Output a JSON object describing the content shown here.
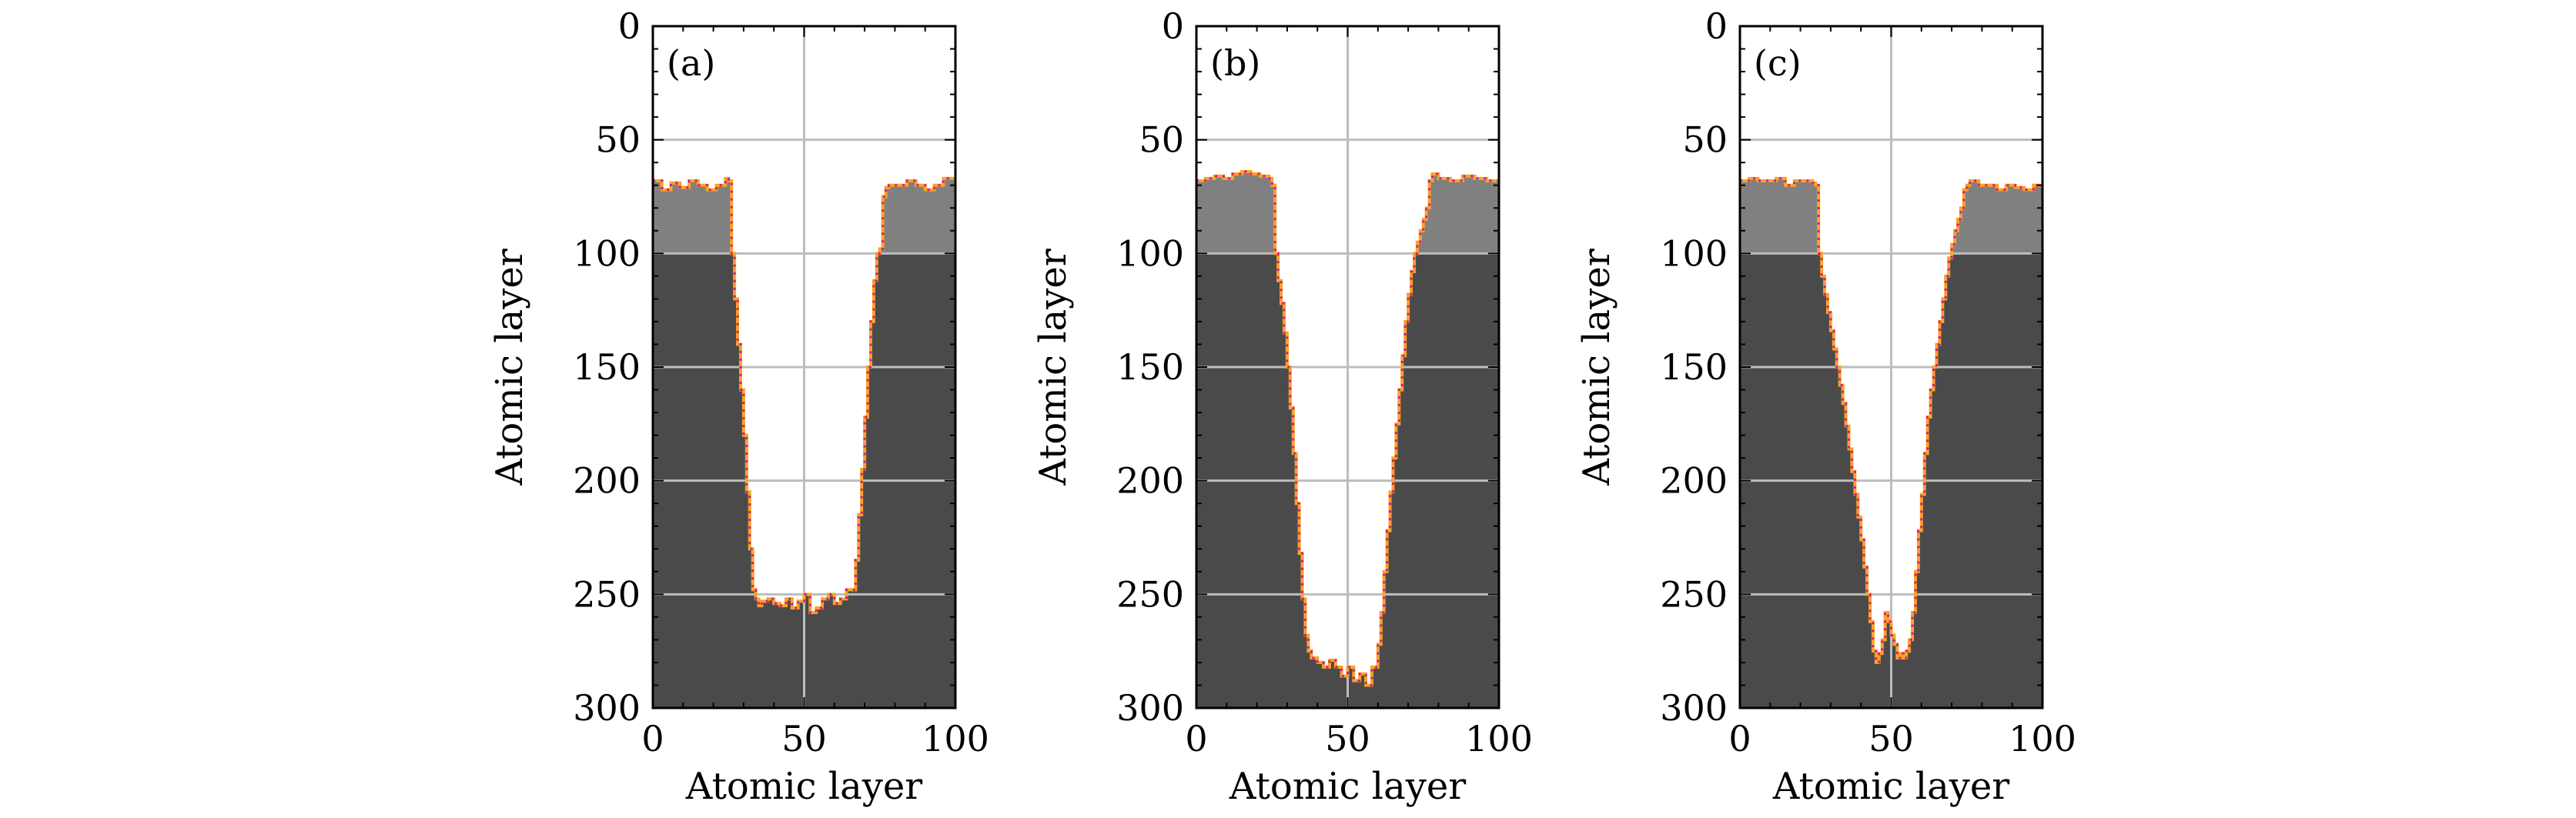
{
  "chart_data": [
    {
      "type": "area",
      "panel_label": "(a)",
      "xlabel": "Atomic layer",
      "ylabel": "Atomic layer",
      "xlim": [
        0,
        100
      ],
      "ylim": [
        300,
        0
      ],
      "y_inverted": true,
      "xticks": [
        0,
        50,
        100
      ],
      "yticks": [
        0,
        50,
        100,
        150,
        200,
        250,
        300
      ],
      "grid": true,
      "substrate_level": 100,
      "colors": {
        "surface_layer": "#808080",
        "bulk": "#4a4a4a",
        "background": "#ffffff",
        "grid": "#bdbdbd",
        "edge_orange": "#f5a623",
        "edge_magenta": "#e0118a"
      },
      "surface_profile": {
        "x": [
          0,
          3,
          6,
          9,
          12,
          15,
          18,
          21,
          24,
          25,
          26,
          27,
          28,
          29,
          30,
          31,
          32,
          33,
          34,
          35,
          36,
          38,
          40,
          42,
          44,
          46,
          48,
          50,
          52,
          54,
          56,
          58,
          60,
          62,
          64,
          66,
          67,
          68,
          69,
          70,
          71,
          72,
          73,
          74,
          75,
          76,
          77,
          78,
          81,
          84,
          87,
          90,
          93,
          96,
          100
        ],
        "y": [
          68,
          72,
          69,
          71,
          68,
          70,
          72,
          70,
          67,
          68,
          100,
          120,
          140,
          160,
          180,
          205,
          230,
          248,
          252,
          255,
          253,
          252,
          254,
          255,
          252,
          256,
          253,
          250,
          258,
          256,
          252,
          250,
          254,
          252,
          248,
          248,
          235,
          215,
          195,
          172,
          150,
          130,
          112,
          100,
          98,
          75,
          71,
          70,
          70,
          68,
          70,
          72,
          70,
          67,
          68
        ]
      }
    },
    {
      "type": "area",
      "panel_label": "(b)",
      "xlabel": "Atomic layer",
      "ylabel": "Atomic layer",
      "xlim": [
        0,
        100
      ],
      "ylim": [
        300,
        0
      ],
      "y_inverted": true,
      "xticks": [
        0,
        50,
        100
      ],
      "yticks": [
        0,
        50,
        100,
        150,
        200,
        250,
        300
      ],
      "grid": true,
      "substrate_level": 100,
      "colors": {
        "surface_layer": "#808080",
        "bulk": "#4a4a4a",
        "background": "#ffffff",
        "grid": "#bdbdbd",
        "edge_orange": "#f5a623",
        "edge_magenta": "#e0118a"
      },
      "surface_profile": {
        "x": [
          0,
          3,
          6,
          9,
          12,
          15,
          18,
          21,
          24,
          25,
          26,
          27,
          28,
          29,
          30,
          31,
          32,
          33,
          34,
          35,
          36,
          37,
          38,
          40,
          42,
          44,
          46,
          48,
          50,
          52,
          54,
          56,
          58,
          60,
          61,
          62,
          63,
          64,
          65,
          66,
          67,
          68,
          69,
          70,
          71,
          72,
          73,
          74,
          75,
          76,
          77,
          78,
          80,
          84,
          88,
          92,
          96,
          100
        ],
        "y": [
          68,
          67,
          66,
          67,
          65,
          64,
          65,
          66,
          67,
          70,
          100,
          112,
          122,
          135,
          150,
          168,
          188,
          210,
          232,
          252,
          268,
          275,
          278,
          280,
          282,
          279,
          282,
          286,
          282,
          288,
          285,
          290,
          282,
          272,
          258,
          240,
          222,
          205,
          190,
          175,
          160,
          145,
          130,
          118,
          108,
          100,
          95,
          90,
          85,
          80,
          68,
          65,
          67,
          68,
          66,
          67,
          68,
          67
        ]
      }
    },
    {
      "type": "area",
      "panel_label": "(c)",
      "xlabel": "Atomic layer",
      "ylabel": "Atomic layer",
      "xlim": [
        0,
        100
      ],
      "ylim": [
        300,
        0
      ],
      "y_inverted": true,
      "xticks": [
        0,
        50,
        100
      ],
      "yticks": [
        0,
        50,
        100,
        150,
        200,
        250,
        300
      ],
      "grid": true,
      "substrate_level": 100,
      "colors": {
        "surface_layer": "#808080",
        "bulk": "#4a4a4a",
        "background": "#ffffff",
        "grid": "#bdbdbd",
        "edge_orange": "#f5a623",
        "edge_magenta": "#e0118a"
      },
      "surface_profile": {
        "x": [
          0,
          3,
          6,
          9,
          12,
          15,
          18,
          21,
          24,
          25,
          26,
          27,
          28,
          29,
          30,
          31,
          32,
          33,
          34,
          35,
          36,
          37,
          38,
          39,
          40,
          41,
          42,
          43,
          44,
          45,
          46,
          47,
          48,
          49,
          50,
          51,
          52,
          53,
          54,
          55,
          56,
          57,
          58,
          59,
          60,
          61,
          62,
          63,
          64,
          65,
          66,
          67,
          68,
          69,
          70,
          71,
          72,
          73,
          74,
          75,
          76,
          79,
          82,
          85,
          88,
          91,
          94,
          97,
          100
        ],
        "y": [
          68,
          67,
          68,
          68,
          67,
          70,
          68,
          68,
          69,
          70,
          100,
          110,
          118,
          126,
          134,
          142,
          150,
          158,
          166,
          176,
          186,
          196,
          206,
          216,
          226,
          238,
          250,
          262,
          275,
          280,
          276,
          270,
          258,
          262,
          268,
          272,
          278,
          276,
          278,
          275,
          270,
          258,
          240,
          222,
          206,
          188,
          172,
          160,
          150,
          140,
          130,
          120,
          110,
          102,
          96,
          90,
          85,
          80,
          72,
          70,
          68,
          70,
          70,
          72,
          70,
          71,
          72,
          70,
          71
        ]
      }
    }
  ]
}
